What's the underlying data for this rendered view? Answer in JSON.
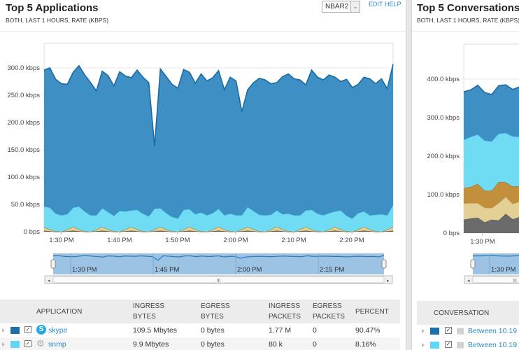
{
  "left": {
    "title": "Top 5 Applications",
    "subtitle": "BOTH, LAST 1 HOURS, RATE (KBPS)",
    "select_value": "NBAR2",
    "edit_label": "EDIT",
    "help_label": "HELP",
    "table": {
      "headers": {
        "application": "APPLICATION",
        "ingress_bytes_1": "INGRESS",
        "ingress_bytes_2": "BYTES",
        "egress_bytes_1": "EGRESS",
        "egress_bytes_2": "BYTES",
        "ingress_packets_1": "INGRESS",
        "ingress_packets_2": "PACKETS",
        "egress_packets_1": "EGRESS",
        "egress_packets_2": "PACKETS",
        "percent": "PERCENT"
      },
      "rows": [
        {
          "name": "skype",
          "icon": "skype-icon",
          "color": "#1f6fa8",
          "ingress_bytes": "109.5 Mbytes",
          "egress_bytes": "0 bytes",
          "ingress_packets": "1.77 M",
          "egress_packets": "0",
          "percent": "90.47%"
        },
        {
          "name": "snmp",
          "icon": "gear-icon",
          "color": "#5fd6f4",
          "ingress_bytes": "9.9 Mbytes",
          "egress_bytes": "0 bytes",
          "ingress_packets": "80 k",
          "egress_packets": "0",
          "percent": "8.16%"
        }
      ]
    }
  },
  "right": {
    "title": "Top 5 Conversations",
    "subtitle": "BOTH, LAST 1 HOURS, RATE (KBPS)",
    "table": {
      "header": "CONVERSATION",
      "rows": [
        {
          "name": "Between 10.19",
          "color": "#1f6fa8"
        },
        {
          "name": "Between 10.19",
          "color": "#5fd6f4"
        }
      ]
    }
  },
  "chart_data": [
    {
      "type": "area",
      "stacked": true,
      "x_start": "1:27 PM",
      "x_interval_minutes": 1,
      "x_tick_labels": [
        "1:30 PM",
        "1:40 PM",
        "1:50 PM",
        "2:00 PM",
        "2:10 PM",
        "2:20 PM"
      ],
      "y_tick_labels": [
        "0 bps",
        "50.0 kbps",
        "100.0 kbps",
        "150.0 kbps",
        "200.0 kbps",
        "250.0 kbps",
        "300.0 kbps"
      ],
      "ylim": [
        0,
        350
      ],
      "grid": true,
      "navigator_labels": [
        "1:30 PM",
        "1:45 PM",
        "2:00 PM",
        "2:15 PM"
      ],
      "series": [
        {
          "color": "#666666",
          "values": [
            2,
            1,
            0,
            0,
            1,
            2,
            1,
            0,
            0,
            1,
            2,
            1,
            0,
            0,
            1,
            2,
            1,
            0,
            0,
            1,
            2,
            1,
            0,
            0,
            1,
            2,
            1,
            0,
            0,
            1,
            2,
            1,
            0,
            0,
            1,
            2,
            1,
            0,
            0,
            1,
            2,
            1,
            0,
            0,
            1,
            2,
            1,
            0,
            0,
            1,
            2,
            1,
            0,
            0,
            1,
            2,
            1,
            0,
            0,
            1,
            2
          ]
        },
        {
          "color": "#e6d08e",
          "values": [
            6,
            3,
            1,
            0,
            3,
            7,
            3,
            1,
            0,
            3,
            7,
            3,
            1,
            0,
            3,
            7,
            3,
            1,
            0,
            3,
            7,
            3,
            1,
            0,
            3,
            7,
            3,
            1,
            0,
            3,
            7,
            3,
            1,
            0,
            3,
            7,
            3,
            1,
            0,
            3,
            7,
            3,
            1,
            0,
            3,
            7,
            3,
            1,
            0,
            3,
            7,
            3,
            1,
            0,
            3,
            7,
            3,
            1,
            0,
            3,
            7
          ]
        },
        {
          "name": "snmp",
          "color": "#6fdcf4",
          "values": [
            38,
            40,
            32,
            30,
            28,
            35,
            42,
            36,
            30,
            26,
            34,
            32,
            28,
            38,
            33,
            30,
            36,
            32,
            28,
            38,
            34,
            30,
            26,
            24,
            36,
            32,
            28,
            34,
            30,
            30,
            33,
            26,
            32,
            30,
            26,
            36,
            34,
            30,
            30,
            27,
            30,
            28,
            32,
            30,
            26,
            30,
            36,
            32,
            30,
            30,
            28,
            35,
            28,
            24,
            30,
            28,
            26,
            30,
            32,
            26,
            40
          ]
        },
        {
          "name": "skype",
          "color": "#3d8fc4",
          "values": [
            250,
            256,
            246,
            241,
            238,
            248,
            258,
            250,
            243,
            228,
            251,
            250,
            238,
            255,
            248,
            243,
            256,
            250,
            245,
            115,
            255,
            250,
            243,
            239,
            257,
            251,
            240,
            254,
            246,
            248,
            253,
            230,
            250,
            246,
            190,
            215,
            235,
            250,
            248,
            240,
            234,
            252,
            256,
            250,
            248,
            230,
            256,
            250,
            248,
            253,
            246,
            236,
            250,
            240,
            236,
            246,
            250,
            240,
            248,
            232,
            258
          ]
        }
      ]
    },
    {
      "type": "area",
      "stacked": true,
      "x_tick_labels": [
        "1:30 PM"
      ],
      "y_tick_labels": [
        "0 bps",
        "100.0 kbps",
        "200.0 kbps",
        "300.0 kbps",
        "400.0 kbps"
      ],
      "ylim": [
        0,
        450
      ],
      "grid": true,
      "navigator_labels": [
        "1:30 PM"
      ],
      "series": [
        {
          "color": "#6b6b6b",
          "values": [
            35,
            38,
            40,
            28,
            35,
            33,
            50,
            36,
            42,
            42
          ]
        },
        {
          "color": "#e2d095",
          "values": [
            42,
            40,
            38,
            38,
            30,
            45,
            44,
            40,
            40,
            40
          ]
        },
        {
          "color": "#c28f3c",
          "values": [
            40,
            42,
            50,
            44,
            45,
            55,
            38,
            45,
            40,
            42
          ]
        },
        {
          "color": "#6fdcf4",
          "values": [
            125,
            130,
            128,
            130,
            128,
            125,
            128,
            130,
            128,
            125
          ]
        },
        {
          "color": "#3d8fc4",
          "values": [
            125,
            122,
            128,
            125,
            122,
            125,
            125,
            122,
            130,
            110
          ]
        }
      ]
    }
  ]
}
